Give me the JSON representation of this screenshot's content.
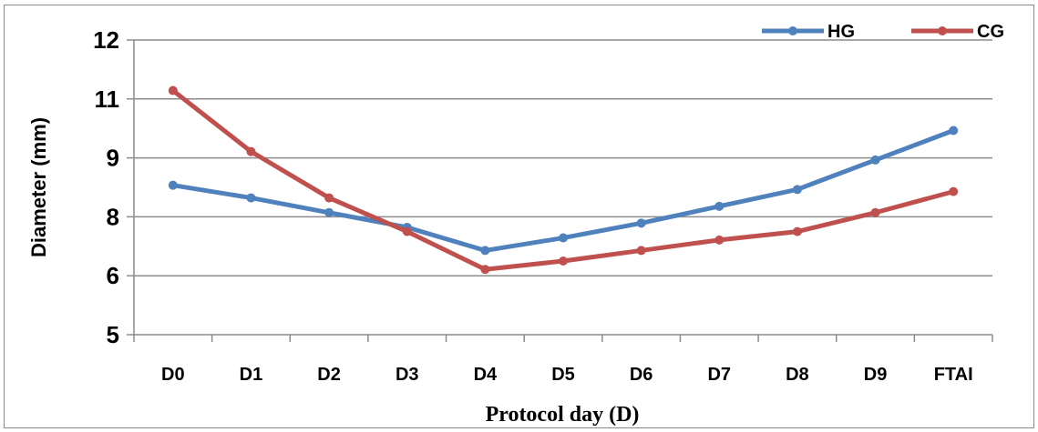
{
  "chart_data": {
    "type": "line",
    "categories": [
      "D0",
      "D1",
      "D2",
      "D3",
      "D4",
      "D5",
      "D6",
      "D7",
      "D8",
      "D9",
      "FTAI"
    ],
    "y_ticks": [
      "5",
      "6",
      "8",
      "9",
      "11",
      "12"
    ],
    "ylim": [
      5,
      12
    ],
    "ylabel": "Diameter (mm)",
    "xlabel": "Protocol day (D)",
    "grid": "horizontal",
    "legend_position": "top-right",
    "series": [
      {
        "name": "HG",
        "color": "#4F81BD",
        "values": [
          8.55,
          8.25,
          7.9,
          7.55,
          7.0,
          7.3,
          7.65,
          8.05,
          8.45,
          9.15,
          9.85
        ]
      },
      {
        "name": "CG",
        "color": "#C0504D",
        "values": [
          10.8,
          9.35,
          8.25,
          7.45,
          6.55,
          6.75,
          7.0,
          7.25,
          7.45,
          7.9,
          8.4
        ]
      }
    ]
  }
}
